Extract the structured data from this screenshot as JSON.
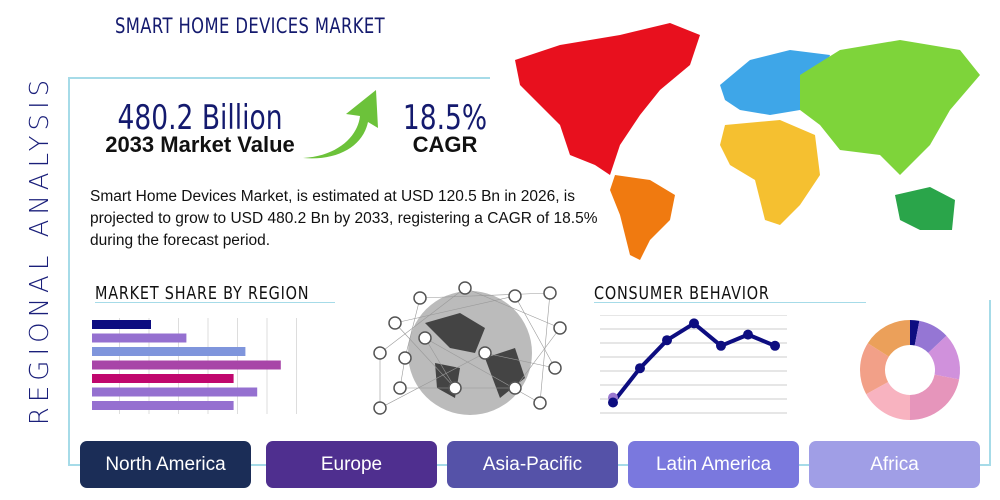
{
  "side_label": "REGIONAL ANALYSIS",
  "title": "SMART HOME DEVICES MARKET",
  "market_value": {
    "value": "480.2 Billion",
    "label": "2033 Market Value"
  },
  "cagr": {
    "value": "18.5%",
    "label": "CAGR"
  },
  "description": "Smart Home Devices Market, is estimated at USD 120.5 Bn in 2026, is projected to grow to USD 480.2 Bn by 2033, registering a CAGR of 18.5% during the forecast period.",
  "sections": {
    "market_share": "MARKET SHARE BY REGION",
    "consumer": "CONSUMER BEHAVIOR"
  },
  "regions": [
    {
      "label": "North America",
      "color": "#1b2d57"
    },
    {
      "label": "Europe",
      "color": "#4f2f8f"
    },
    {
      "label": "Asia-Pacific",
      "color": "#5552a8"
    },
    {
      "label": "Latin America",
      "color": "#7a78de"
    },
    {
      "label": "Africa",
      "color": "#a09ee6"
    }
  ],
  "map_colors": {
    "north_america": "#e8101e",
    "south_america": "#f07a10",
    "europe": "#3ea6e8",
    "asia": "#7ed43a",
    "africa": "#f5c030",
    "oceania": "#2aa54a"
  },
  "icons": [
    "growth-arrow-icon",
    "globe-network-icon",
    "world-map-icon"
  ],
  "chart_data": [
    {
      "type": "bar",
      "orientation": "horizontal",
      "values": [
        2.0,
        3.2,
        5.2,
        6.4,
        4.8,
        5.6,
        4.8
      ],
      "colors": [
        "#0d0d80",
        "#9570d0",
        "#7f95dc",
        "#a845a8",
        "#c0076e",
        "#9570d0",
        "#9570d0"
      ],
      "xlim": [
        0,
        7
      ],
      "grid": true
    },
    {
      "type": "line",
      "values": [
        0.75,
        3.2,
        5.2,
        6.4,
        4.8,
        5.6,
        4.8
      ],
      "extra_point": 1.1,
      "ylim": [
        0,
        7
      ],
      "color": "#0d0d80",
      "grid": true
    },
    {
      "type": "pie",
      "donut": true,
      "values": [
        3,
        10,
        15,
        22,
        17,
        17,
        16
      ],
      "colors": [
        "#0d0d80",
        "#9576d4",
        "#d091dc",
        "#e695bb",
        "#f8b3c0",
        "#f2a088",
        "#eba05a"
      ]
    }
  ]
}
